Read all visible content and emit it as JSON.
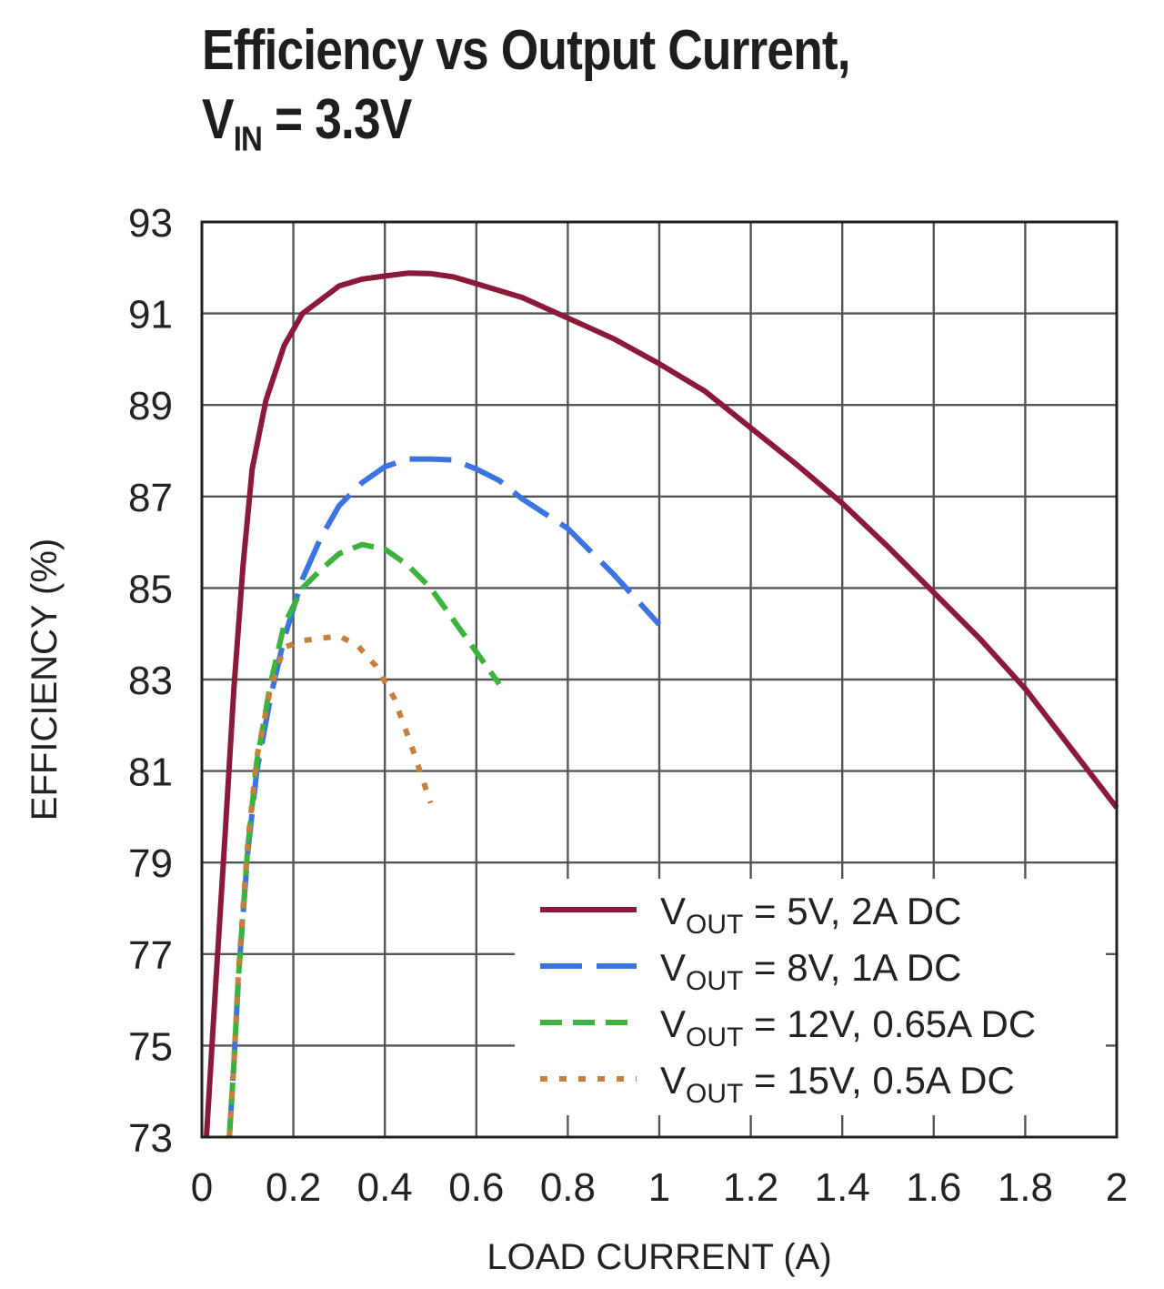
{
  "title": {
    "line1": "Efficiency vs Output Current,",
    "line2_main": "V",
    "line2_sub": "IN",
    "line2_rest": " = 3.3V"
  },
  "chart_data": {
    "type": "line",
    "xlabel": "LOAD CURRENT (A)",
    "ylabel": "EFFICIENCY (%)",
    "xlim": [
      0,
      2
    ],
    "ylim": [
      73,
      93
    ],
    "x_ticks": [
      "0",
      "0.2",
      "0.4",
      "0.6",
      "0.8",
      "1",
      "1.2",
      "1.4",
      "1.6",
      "1.8",
      "2"
    ],
    "y_ticks": [
      "73",
      "75",
      "77",
      "79",
      "81",
      "83",
      "85",
      "87",
      "89",
      "91",
      "93"
    ],
    "grid": true,
    "legend_position": "bottom-right",
    "series": [
      {
        "name": "VOUT = 5V, 2A DC",
        "label_main": "V",
        "label_sub": "OUT",
        "label_rest": " = 5V, 2A DC",
        "color": "#8b1a3a",
        "style": "solid",
        "x": [
          0.01,
          0.03,
          0.05,
          0.07,
          0.09,
          0.11,
          0.14,
          0.18,
          0.22,
          0.26,
          0.3,
          0.35,
          0.4,
          0.45,
          0.5,
          0.55,
          0.6,
          0.7,
          0.8,
          0.9,
          1.0,
          1.1,
          1.2,
          1.3,
          1.4,
          1.5,
          1.6,
          1.7,
          1.8,
          1.9,
          2.0
        ],
        "y": [
          73.0,
          76.3,
          79.5,
          82.8,
          85.5,
          87.6,
          89.1,
          90.3,
          91.0,
          91.3,
          91.6,
          91.75,
          91.82,
          91.88,
          91.87,
          91.8,
          91.65,
          91.35,
          90.9,
          90.45,
          89.9,
          89.3,
          88.5,
          87.7,
          86.85,
          85.9,
          84.9,
          83.9,
          82.8,
          81.5,
          80.2
        ]
      },
      {
        "name": "VOUT = 8V, 1A DC",
        "label_main": "V",
        "label_sub": "OUT",
        "label_rest": " = 8V, 1A DC",
        "color": "#3a74e0",
        "style": "longdash",
        "x": [
          0.06,
          0.07,
          0.08,
          0.1,
          0.12,
          0.15,
          0.18,
          0.22,
          0.26,
          0.3,
          0.35,
          0.4,
          0.45,
          0.5,
          0.55,
          0.6,
          0.65,
          0.7,
          0.8,
          0.9,
          1.0
        ],
        "y": [
          73.0,
          74.6,
          76.5,
          79.2,
          81.0,
          82.6,
          83.9,
          85.2,
          86.1,
          86.8,
          87.3,
          87.65,
          87.82,
          87.82,
          87.8,
          87.6,
          87.35,
          86.95,
          86.3,
          85.3,
          84.2
        ]
      },
      {
        "name": "VOUT = 12V, 0.65A DC",
        "label_main": "V",
        "label_sub": "OUT",
        "label_rest": " = 12V, 0.65A DC",
        "color": "#3cb33c",
        "style": "dash",
        "x": [
          0.06,
          0.07,
          0.08,
          0.1,
          0.12,
          0.15,
          0.18,
          0.22,
          0.26,
          0.3,
          0.35,
          0.4,
          0.45,
          0.5,
          0.55,
          0.6,
          0.65
        ],
        "y": [
          73.0,
          74.6,
          76.5,
          79.3,
          81.2,
          82.9,
          84.2,
          85.0,
          85.4,
          85.75,
          85.95,
          85.85,
          85.5,
          85.0,
          84.3,
          83.6,
          82.9
        ]
      },
      {
        "name": "VOUT = 15V, 0.5A DC",
        "label_main": "V",
        "label_sub": "OUT",
        "label_rest": " = 15V, 0.5A DC",
        "color": "#c77f3c",
        "style": "dot",
        "x": [
          0.06,
          0.07,
          0.08,
          0.1,
          0.12,
          0.15,
          0.18,
          0.22,
          0.26,
          0.3,
          0.34,
          0.38,
          0.42,
          0.46,
          0.5
        ],
        "y": [
          73.0,
          74.6,
          76.6,
          79.4,
          81.3,
          82.8,
          83.7,
          83.85,
          83.9,
          83.95,
          83.75,
          83.3,
          82.6,
          81.5,
          80.3
        ]
      }
    ]
  }
}
